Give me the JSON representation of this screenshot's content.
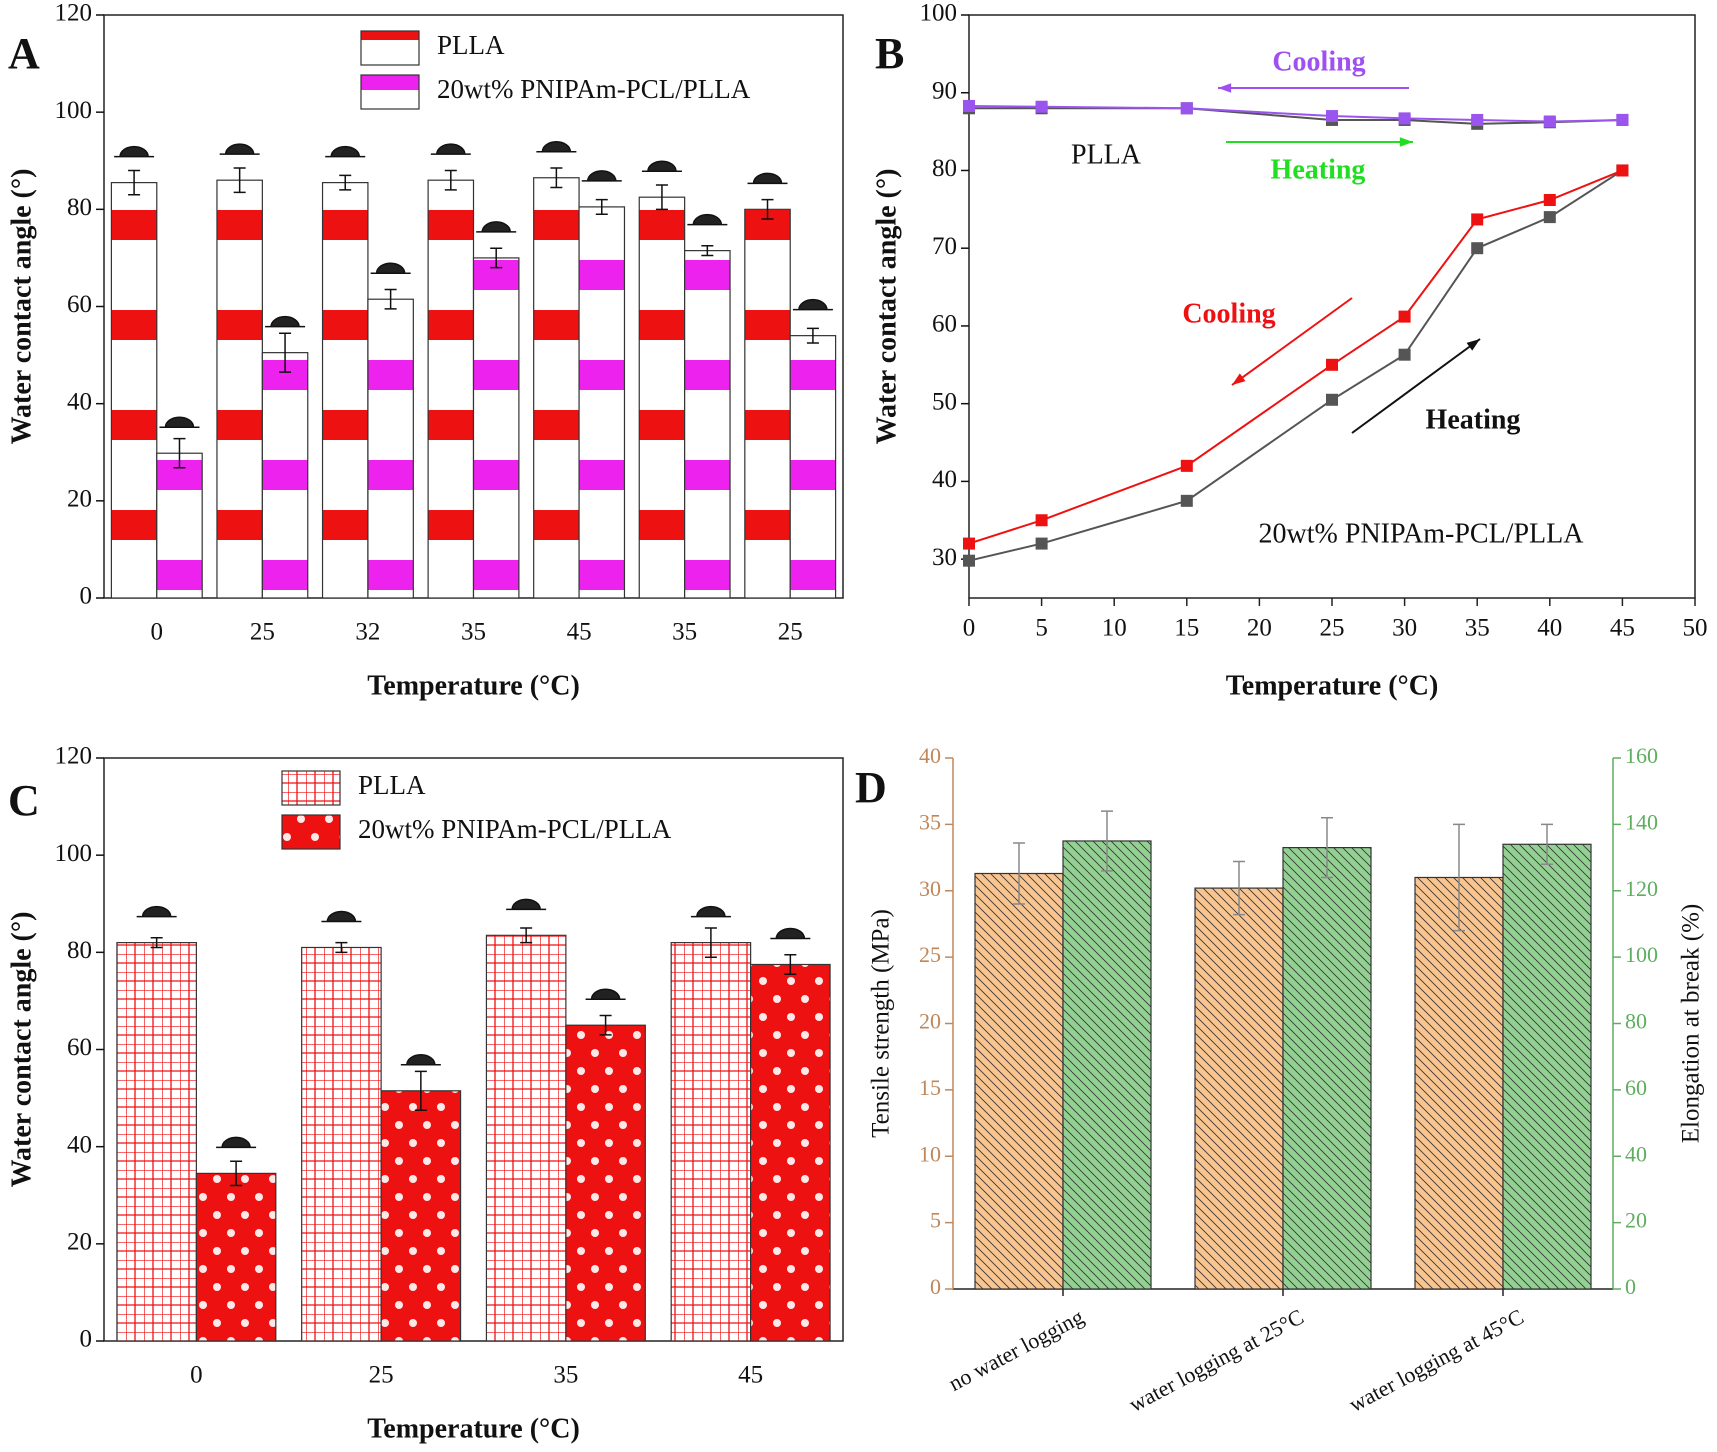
{
  "chart_data": [
    {
      "type": "bar",
      "label": "A",
      "xlabel": "Temperature (°C)",
      "ylabel": "Water contact angle (°)",
      "categories": [
        "0",
        "25",
        "32",
        "35",
        "45",
        "35",
        "25"
      ],
      "series": [
        {
          "name": "PLLA",
          "color": "#ee1111",
          "pattern": "bands",
          "values": [
            85.5,
            86,
            85.5,
            86,
            86.5,
            82.5,
            80
          ],
          "errors": [
            2.5,
            2.5,
            1.5,
            2,
            2,
            2.5,
            2
          ]
        },
        {
          "name": "20wt% PNIPAm-PCL/PLLA",
          "color": "#ee22ee",
          "pattern": "bands",
          "values": [
            29.8,
            50.5,
            61.5,
            70,
            80.5,
            71.5,
            54
          ],
          "errors": [
            3,
            4,
            2,
            2,
            1.5,
            1,
            1.5
          ]
        }
      ],
      "ylim": [
        0,
        120
      ],
      "yticks": [
        0,
        20,
        40,
        60,
        80,
        100,
        120
      ],
      "legend": "top",
      "droplets": true
    },
    {
      "type": "line",
      "label": "B",
      "xlabel": "Temperature (°C)",
      "ylabel": "Water contact angle (°)",
      "x": [
        0,
        5,
        15,
        25,
        30,
        35,
        40,
        45
      ],
      "series": [
        {
          "color": "#555555",
          "values": [
            88,
            88,
            88,
            86.5,
            86.5,
            86,
            86.2,
            86.5
          ]
        },
        {
          "color": "#9955ee",
          "values": [
            88.3,
            88.2,
            88,
            87,
            86.7,
            86.5,
            86.3,
            86.5
          ]
        },
        {
          "color": "#555555",
          "values": [
            29.8,
            32,
            37.5,
            50.5,
            56.3,
            70,
            74,
            80
          ]
        },
        {
          "color": "#ee1111",
          "values": [
            32,
            35,
            42,
            55,
            61.2,
            73.7,
            76.2,
            80
          ]
        }
      ],
      "xlim": [
        0,
        50
      ],
      "xticks": [
        0,
        5,
        10,
        15,
        20,
        25,
        30,
        35,
        40,
        45,
        50
      ],
      "ylim": [
        25,
        100
      ],
      "yticks": [
        30,
        40,
        50,
        60,
        70,
        80,
        90,
        100
      ],
      "annotations": [
        "Cooling",
        "Heating",
        "PLLA",
        "Cooling",
        "Heating",
        "20wt% PNIPAm-PCL/PLLA"
      ]
    },
    {
      "type": "bar",
      "label": "C",
      "xlabel": "Temperature (°C)",
      "ylabel": "Water contact angle (°)",
      "categories": [
        "0",
        "25",
        "35",
        "45"
      ],
      "series": [
        {
          "name": "PLLA",
          "color": "#ee1111",
          "pattern": "grid",
          "values": [
            82,
            81,
            83.5,
            82
          ],
          "errors": [
            1,
            1,
            1.5,
            3
          ]
        },
        {
          "name": "20wt% PNIPAm-PCL/PLLA",
          "color": "#ee1111",
          "pattern": "dots",
          "values": [
            34.5,
            51.5,
            65,
            77.5
          ],
          "errors": [
            2.5,
            4,
            2,
            2
          ]
        }
      ],
      "ylim": [
        0,
        120
      ],
      "yticks": [
        0,
        20,
        40,
        60,
        80,
        100,
        120
      ],
      "legend": "top",
      "droplets": true
    },
    {
      "type": "bar",
      "label": "D",
      "ylabel": "Tensile strength (MPa)",
      "y2label": "Elongation at break (%)",
      "categories": [
        "no water logging",
        "water logging at 25°C",
        "water logging at 45°C"
      ],
      "series": [
        {
          "color": "#f8c48f",
          "pattern": "hatch",
          "values": [
            31.3,
            30.2,
            31
          ],
          "errors": [
            2.3,
            2,
            4
          ]
        },
        {
          "color": "#93d193",
          "pattern": "hatch",
          "axis": "y2",
          "values": [
            135,
            133,
            134
          ],
          "errors": [
            9,
            9,
            6
          ]
        }
      ],
      "ylim": [
        0,
        40
      ],
      "yticks": [
        0,
        5,
        10,
        15,
        20,
        25,
        30,
        35,
        40
      ],
      "ycolor": "#c0875a",
      "y2lim": [
        0,
        160
      ],
      "y2ticks": [
        0,
        20,
        40,
        60,
        80,
        100,
        120,
        140,
        160
      ],
      "y2color": "#5fae5f"
    }
  ]
}
